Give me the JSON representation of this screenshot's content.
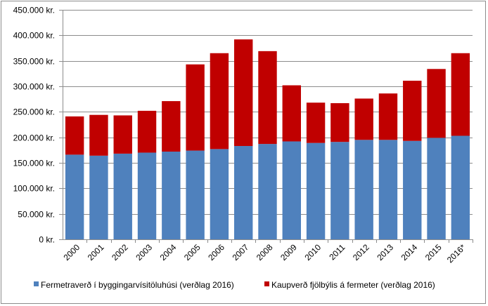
{
  "chart_data": {
    "type": "bar",
    "stacked": true,
    "title": "",
    "xlabel": "",
    "ylabel": "",
    "ylim": [
      0,
      450000
    ],
    "grid": true,
    "legend_position": "bottom",
    "categories": [
      "2000",
      "2001",
      "2002",
      "2003",
      "2004",
      "2005",
      "2006",
      "2007",
      "2008",
      "2009",
      "2010",
      "2011",
      "2012",
      "2013",
      "2014",
      "2015",
      "2016*"
    ],
    "y_tick_labels": [
      "0 kr.",
      "50.000 kr.",
      "100.000 kr.",
      "150.000 kr.",
      "200.000 kr.",
      "250.000 kr.",
      "300.000 kr.",
      "350.000 kr.",
      "400.000 kr.",
      "450.000 kr."
    ],
    "y_tick_values": [
      0,
      50000,
      100000,
      150000,
      200000,
      250000,
      300000,
      350000,
      400000,
      450000
    ],
    "series": [
      {
        "name": "Fermetraverð í byggingarvísitöluhúsi (verðlag 2016)",
        "color": "#4f81bd",
        "values": [
          166000,
          164000,
          168000,
          170000,
          172000,
          174000,
          177000,
          183000,
          187000,
          192000,
          189000,
          191000,
          195000,
          195000,
          193000,
          199000,
          203000
        ]
      },
      {
        "name": "Kaupverð fjölbýlis á fermeter (verðlag 2016)",
        "color": "#c00000",
        "values": [
          75000,
          80000,
          75000,
          82000,
          99000,
          169000,
          188000,
          209000,
          182000,
          110000,
          79000,
          76000,
          81000,
          91000,
          118000,
          135000,
          162000
        ]
      }
    ]
  }
}
